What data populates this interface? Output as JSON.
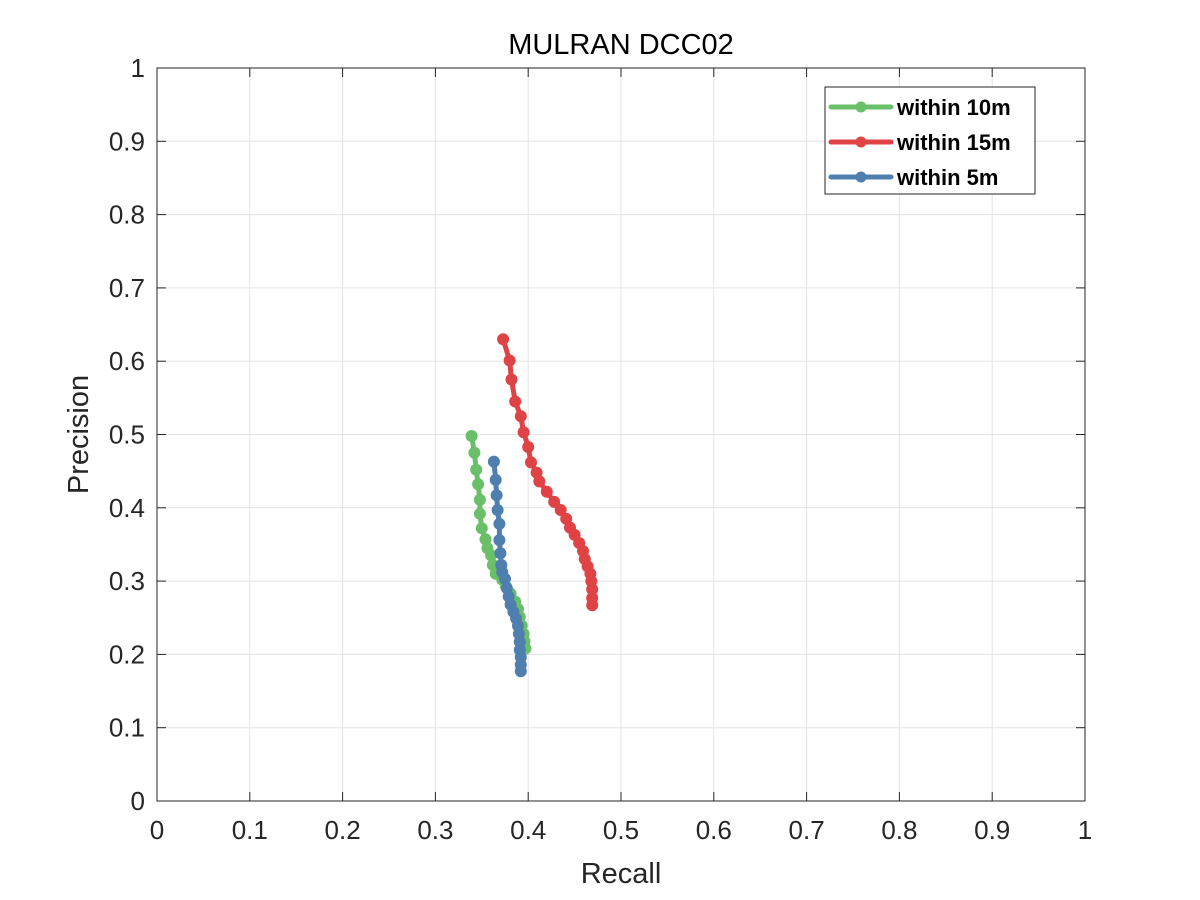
{
  "chart_data": {
    "type": "line",
    "title": "MULRAN DCC02",
    "xlabel": "Recall",
    "ylabel": "Precision",
    "xlim": [
      0,
      1
    ],
    "ylim": [
      0,
      1
    ],
    "x_ticks": [
      "0",
      "0.1",
      "0.2",
      "0.3",
      "0.4",
      "0.5",
      "0.6",
      "0.7",
      "0.8",
      "0.9",
      "1"
    ],
    "y_ticks": [
      "0",
      "0.1",
      "0.2",
      "0.3",
      "0.4",
      "0.5",
      "0.6",
      "0.7",
      "0.8",
      "0.9",
      "1"
    ],
    "grid": true,
    "legend_position": "top-right",
    "series": [
      {
        "name": "within 10m",
        "color": "#6abf69",
        "points": [
          [
            0.339,
            0.498
          ],
          [
            0.342,
            0.475
          ],
          [
            0.344,
            0.452
          ],
          [
            0.346,
            0.432
          ],
          [
            0.348,
            0.411
          ],
          [
            0.348,
            0.392
          ],
          [
            0.35,
            0.372
          ],
          [
            0.354,
            0.357
          ],
          [
            0.356,
            0.345
          ],
          [
            0.36,
            0.335
          ],
          [
            0.362,
            0.322
          ],
          [
            0.365,
            0.31
          ],
          [
            0.372,
            0.302
          ],
          [
            0.376,
            0.293
          ],
          [
            0.381,
            0.283
          ],
          [
            0.386,
            0.272
          ],
          [
            0.389,
            0.262
          ],
          [
            0.391,
            0.251
          ],
          [
            0.393,
            0.239
          ],
          [
            0.395,
            0.228
          ],
          [
            0.396,
            0.218
          ],
          [
            0.397,
            0.208
          ]
        ]
      },
      {
        "name": "within 15m",
        "color": "#e04345",
        "points": [
          [
            0.373,
            0.63
          ],
          [
            0.38,
            0.601
          ],
          [
            0.382,
            0.575
          ],
          [
            0.386,
            0.545
          ],
          [
            0.392,
            0.525
          ],
          [
            0.395,
            0.503
          ],
          [
            0.4,
            0.483
          ],
          [
            0.403,
            0.462
          ],
          [
            0.409,
            0.448
          ],
          [
            0.412,
            0.436
          ],
          [
            0.42,
            0.422
          ],
          [
            0.428,
            0.408
          ],
          [
            0.435,
            0.397
          ],
          [
            0.441,
            0.385
          ],
          [
            0.445,
            0.373
          ],
          [
            0.45,
            0.363
          ],
          [
            0.455,
            0.352
          ],
          [
            0.459,
            0.341
          ],
          [
            0.461,
            0.33
          ],
          [
            0.464,
            0.32
          ],
          [
            0.467,
            0.31
          ],
          [
            0.468,
            0.3
          ],
          [
            0.469,
            0.289
          ],
          [
            0.469,
            0.277
          ],
          [
            0.469,
            0.267
          ]
        ]
      },
      {
        "name": "within 5m",
        "color": "#4e7fae",
        "points": [
          [
            0.363,
            0.463
          ],
          [
            0.365,
            0.438
          ],
          [
            0.366,
            0.417
          ],
          [
            0.367,
            0.397
          ],
          [
            0.369,
            0.378
          ],
          [
            0.369,
            0.356
          ],
          [
            0.37,
            0.338
          ],
          [
            0.371,
            0.322
          ],
          [
            0.372,
            0.312
          ],
          [
            0.375,
            0.303
          ],
          [
            0.377,
            0.29
          ],
          [
            0.379,
            0.279
          ],
          [
            0.381,
            0.268
          ],
          [
            0.384,
            0.258
          ],
          [
            0.387,
            0.249
          ],
          [
            0.389,
            0.239
          ],
          [
            0.39,
            0.228
          ],
          [
            0.391,
            0.217
          ],
          [
            0.391,
            0.206
          ],
          [
            0.392,
            0.196
          ],
          [
            0.392,
            0.186
          ],
          [
            0.392,
            0.177
          ]
        ]
      }
    ],
    "legend_order": [
      "within 10m",
      "within 15m",
      "within 5m"
    ]
  }
}
